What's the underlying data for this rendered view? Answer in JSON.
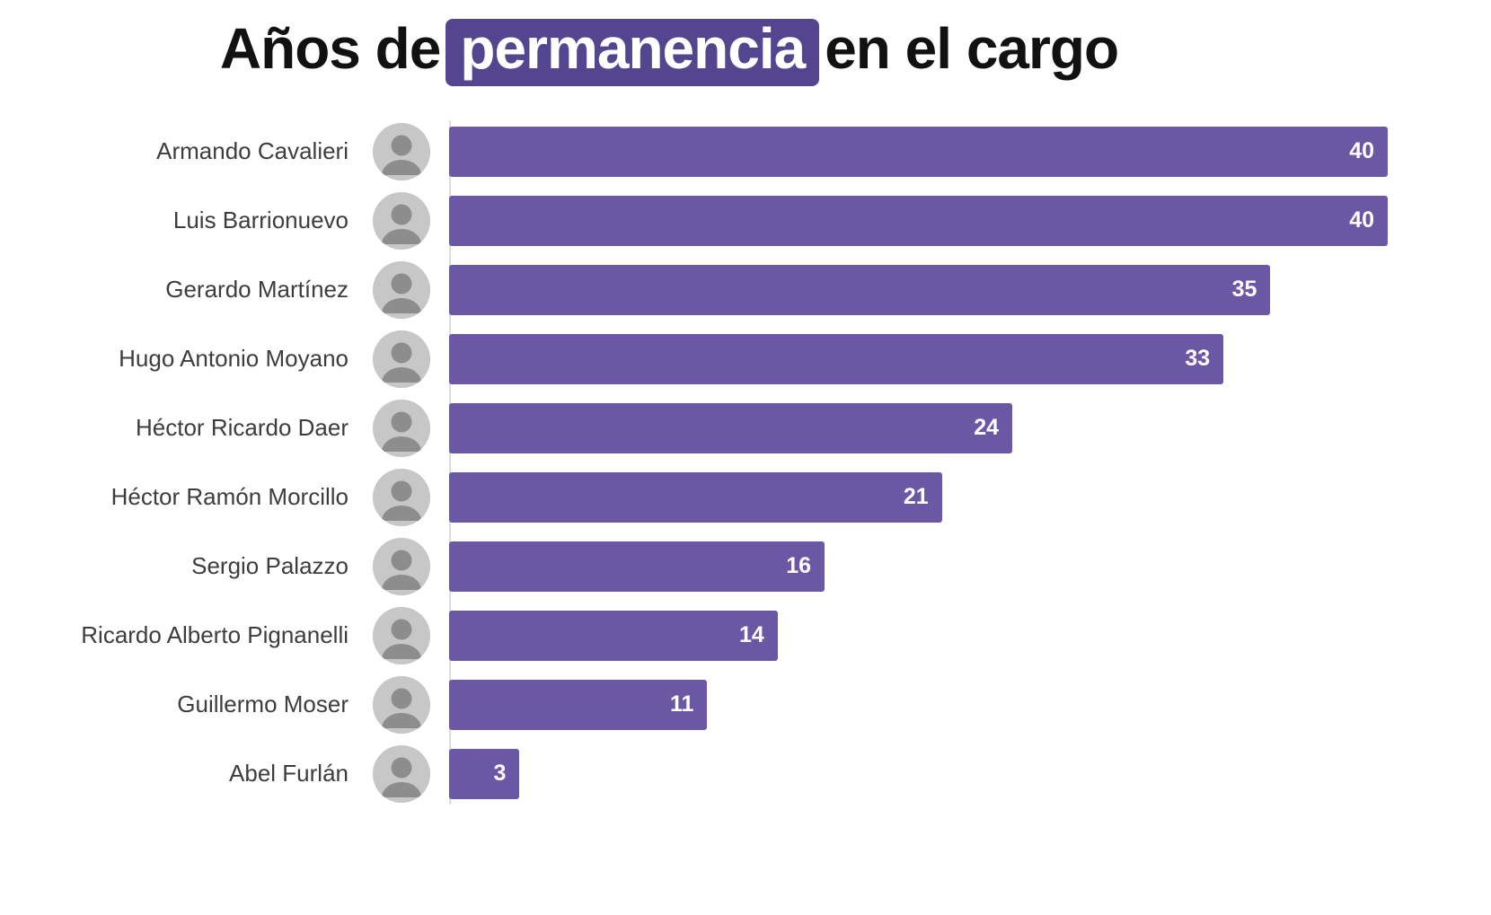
{
  "title": {
    "pre": "Años de",
    "highlight": "permanencia",
    "post": "en el cargo"
  },
  "colors": {
    "bar": "#6a58a5",
    "highlight_bg": "#54458f",
    "title_text": "#111111",
    "label_text": "#3d3d3d",
    "value_text": "#ffffff",
    "axis_line": "#dedede",
    "avatar_bg": "#c7c7c7",
    "avatar_fg": "#8d8d8d"
  },
  "chart_data": {
    "type": "bar",
    "orientation": "horizontal",
    "title": "Años de permanencia en el cargo",
    "xlabel": "",
    "ylabel": "",
    "xlim": [
      0,
      40
    ],
    "grid": false,
    "legend": false,
    "value_labels": "inside-right",
    "row_avatars": true,
    "categories": [
      "Armando Cavalieri",
      "Luis Barrionuevo",
      "Gerardo Martínez",
      "Hugo Antonio Moyano",
      "Héctor Ricardo Daer",
      "Héctor Ramón Morcillo",
      "Sergio Palazzo",
      "Ricardo Alberto Pignanelli",
      "Guillermo Moser",
      "Abel Furlán"
    ],
    "values": [
      40,
      40,
      35,
      33,
      24,
      21,
      16,
      14,
      11,
      3
    ]
  }
}
